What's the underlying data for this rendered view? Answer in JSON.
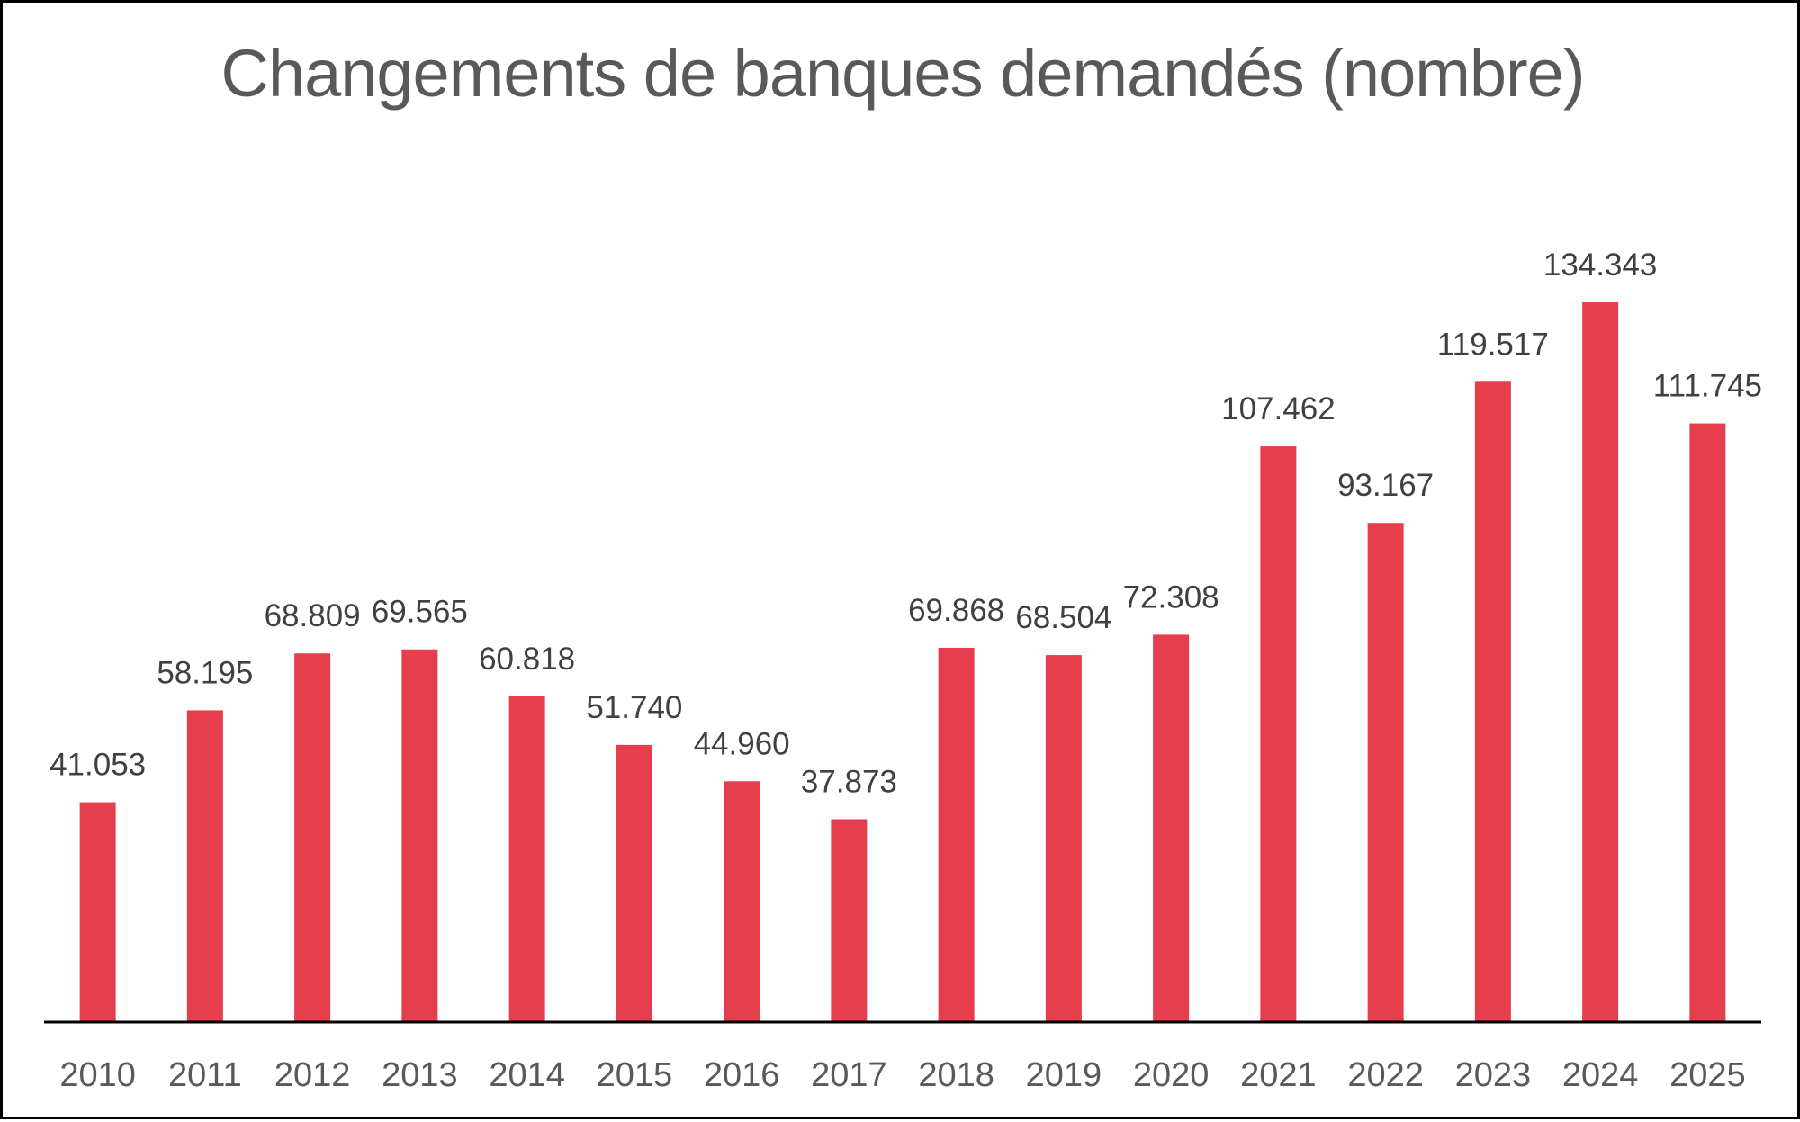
{
  "chart_data": {
    "type": "bar",
    "title": "Changements de banques demandés (nombre)",
    "xlabel": "",
    "ylabel": "",
    "categories": [
      "2010",
      "2011",
      "2012",
      "2013",
      "2014",
      "2015",
      "2016",
      "2017",
      "2018",
      "2019",
      "2020",
      "2021",
      "2022",
      "2023",
      "2024",
      "2025"
    ],
    "values": [
      41053,
      58195,
      68809,
      69565,
      60818,
      51740,
      44960,
      37873,
      69868,
      68504,
      72308,
      107462,
      93167,
      119517,
      134343,
      111745
    ],
    "data_labels": [
      "41.053",
      "58.195",
      "68.809",
      "69.565",
      "60.818",
      "51.740",
      "44.960",
      "37.873",
      "69.868",
      "68.504",
      "72.308",
      "107.462",
      "93.167",
      "119.517",
      "134.343",
      "111.745"
    ],
    "ylim": [
      0,
      134343
    ],
    "grid": false,
    "legend": "none",
    "bar_color": "#E63E4D",
    "axis_color": "#000000"
  }
}
